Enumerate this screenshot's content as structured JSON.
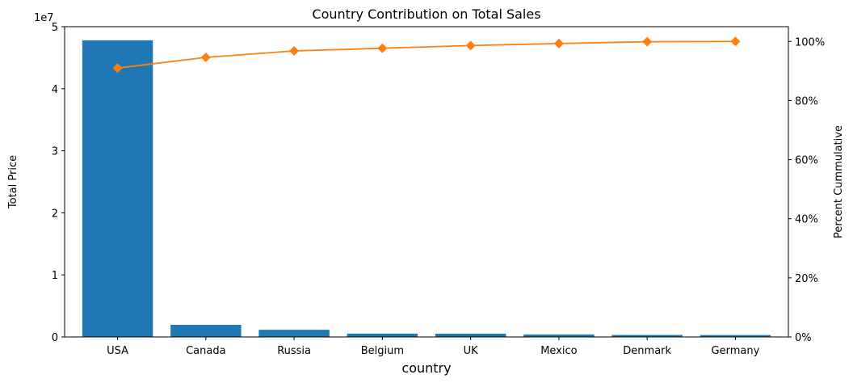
{
  "chart_data": {
    "type": "bar",
    "title": "Country Contribution on Total Sales",
    "xlabel": "country",
    "ylabel": "Total Price",
    "y2label": "Percent Cummulative",
    "y_offset_text": "1e7",
    "y_scale": 10000000,
    "ylim": [
      0,
      50000000
    ],
    "y2lim": [
      0,
      105
    ],
    "yticks": [
      0,
      1,
      2,
      3,
      4,
      5
    ],
    "yticks_values": [
      0,
      10000000,
      20000000,
      30000000,
      40000000,
      50000000
    ],
    "y2ticks": [
      0,
      20,
      40,
      60,
      80,
      100
    ],
    "y2tick_labels": [
      "0%",
      "20%",
      "40%",
      "60%",
      "80%",
      "100%"
    ],
    "categories": [
      "USA",
      "Canada",
      "Russia",
      "Belgium",
      "UK",
      "Mexico",
      "Denmark",
      "Germany"
    ],
    "series": [
      {
        "name": "Total Price",
        "kind": "bar",
        "axis": "left",
        "values": [
          47800000,
          1950000,
          1150000,
          530000,
          520000,
          390000,
          320000,
          300000
        ]
      },
      {
        "name": "Percent Cummulative",
        "kind": "line",
        "axis": "right",
        "marker": "diamond",
        "values": [
          91.0,
          94.6,
          96.8,
          97.7,
          98.6,
          99.3,
          99.9,
          100.0
        ]
      }
    ],
    "colors": {
      "bar": "#1f77b4",
      "line": "#ff7f0e",
      "axis": "#000000"
    }
  }
}
